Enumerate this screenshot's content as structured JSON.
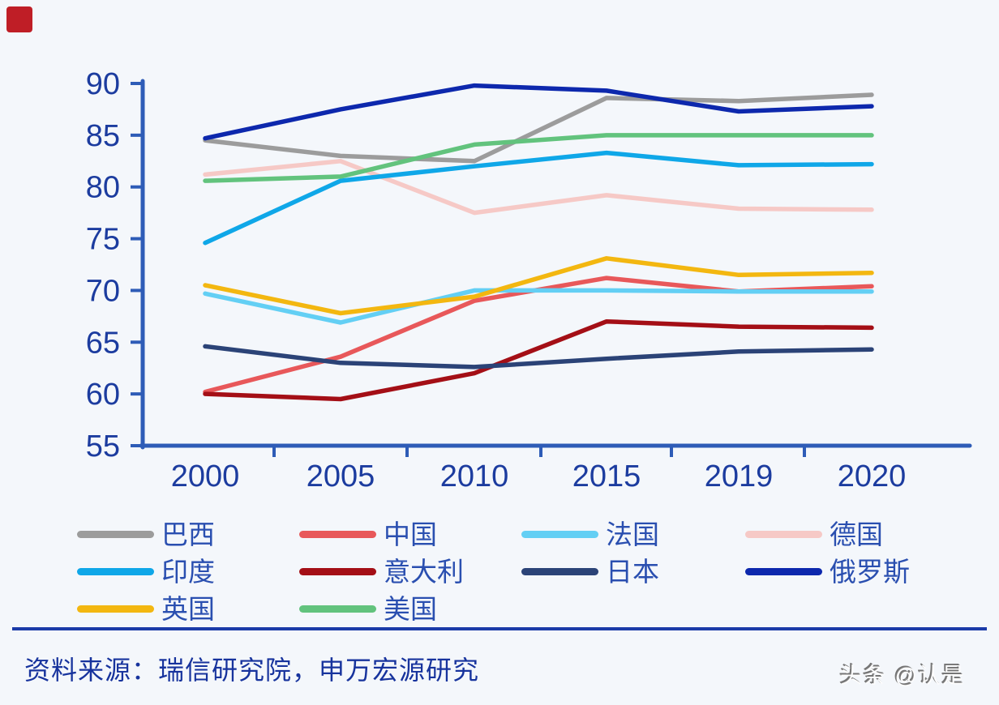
{
  "page": {
    "background_color": "#f4f7fb",
    "corner_square_color": "#bf1e26",
    "divider_color": "#1b3ba8"
  },
  "source": {
    "text": "资料来源：瑞信研究院，申万宏源研究",
    "color": "#17339d"
  },
  "watermark": {
    "text": "头条 @认是"
  },
  "chart_data": {
    "type": "line",
    "title": "",
    "xlabel": "",
    "ylabel": "",
    "categories": [
      "2000",
      "2005",
      "2010",
      "2015",
      "2019",
      "2020"
    ],
    "series": [
      {
        "name": "巴西",
        "color": "#9c9c9c",
        "values": [
          84.5,
          83.0,
          82.5,
          88.6,
          88.3,
          88.9
        ]
      },
      {
        "name": "中国",
        "color": "#e8585a",
        "values": [
          60.2,
          63.6,
          69.0,
          71.2,
          69.9,
          70.4
        ]
      },
      {
        "name": "法国",
        "color": "#63cff4",
        "values": [
          69.7,
          66.9,
          70.0,
          70.0,
          69.9,
          69.9
        ]
      },
      {
        "name": "德国",
        "color": "#f6c9c6",
        "values": [
          81.2,
          82.5,
          77.5,
          79.2,
          77.9,
          77.8
        ]
      },
      {
        "name": "印度",
        "color": "#0fa7e8",
        "values": [
          74.6,
          80.6,
          82.0,
          83.3,
          82.1,
          82.2
        ]
      },
      {
        "name": "意大利",
        "color": "#a40f16",
        "values": [
          60.0,
          59.5,
          62.0,
          67.0,
          66.5,
          66.4
        ]
      },
      {
        "name": "日本",
        "color": "#2b4377",
        "values": [
          64.6,
          63.0,
          62.6,
          63.4,
          64.1,
          64.3
        ]
      },
      {
        "name": "俄罗斯",
        "color": "#0d28ad",
        "values": [
          84.7,
          87.5,
          89.8,
          89.3,
          87.3,
          87.8
        ]
      },
      {
        "name": "英国",
        "color": "#f3b710",
        "values": [
          70.5,
          67.8,
          69.4,
          73.1,
          71.5,
          71.7
        ]
      },
      {
        "name": "美国",
        "color": "#62c37d",
        "values": [
          80.6,
          81.0,
          84.1,
          85.0,
          85.0,
          85.0
        ]
      }
    ],
    "ylim": [
      55,
      90
    ],
    "yticks": [
      90,
      85,
      80,
      75,
      70,
      65,
      60,
      55
    ],
    "grid": false,
    "legend_position": "bottom",
    "line_width": 5.5,
    "axis_color": "#2e5cb7",
    "tick_label_color": "#1c3c9f",
    "legend_text_color": "#2a4fb0"
  }
}
